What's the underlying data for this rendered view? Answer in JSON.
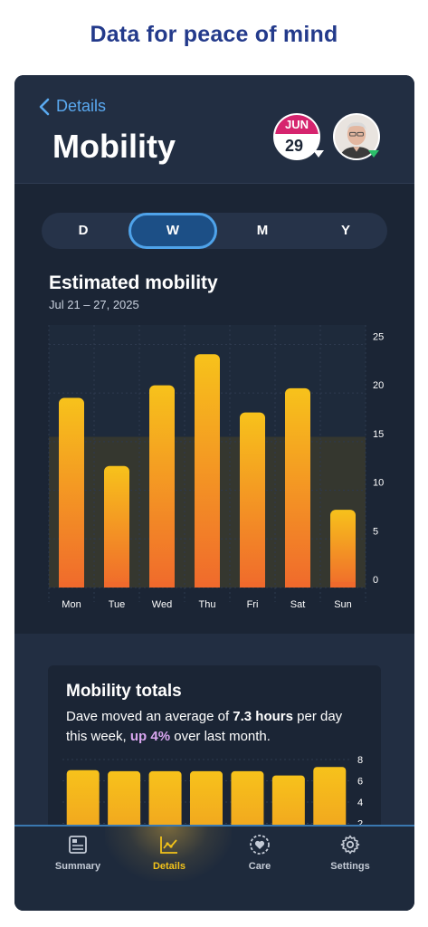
{
  "headline": "Data for peace of mind",
  "header": {
    "back_label": "Details",
    "title": "Mobility",
    "calendar": {
      "month": "JUN",
      "day": "29"
    }
  },
  "segments": [
    {
      "label": "D",
      "active": false
    },
    {
      "label": "W",
      "active": true
    },
    {
      "label": "M",
      "active": false
    },
    {
      "label": "Y",
      "active": false
    }
  ],
  "estimated": {
    "title": "Estimated mobility",
    "date_range": "Jul 21 – 27, 2025"
  },
  "chart_data": [
    {
      "type": "bar",
      "title": "Estimated mobility",
      "categories": [
        "Mon",
        "Tue",
        "Wed",
        "Thu",
        "Fri",
        "Sat",
        "Sun"
      ],
      "values": [
        19.5,
        12.5,
        20.8,
        24,
        18,
        20.5,
        8
      ],
      "yticks": [
        0,
        5,
        10,
        15,
        20,
        25
      ],
      "ylim": [
        0,
        27
      ],
      "target_band": [
        0,
        15.5
      ],
      "grid": true,
      "colors": {
        "bar_top": "#f7c21b",
        "bar_bottom": "#f06a2c",
        "band": "#3a3a2e"
      }
    },
    {
      "type": "bar",
      "title": "Mobility totals",
      "values": [
        7,
        6.9,
        6.9,
        6.9,
        6.9,
        6.5,
        7.3
      ],
      "yticks": [
        2,
        4,
        6,
        8
      ],
      "ylim": [
        0,
        8
      ],
      "colors": {
        "bar_top": "#f7c21b",
        "bar_bottom": "#f0a020"
      }
    }
  ],
  "totals": {
    "title": "Mobility totals",
    "text_before": "Dave moved an average of ",
    "hours": "7.3 hours",
    "text_mid": " per day this week, ",
    "up": "up 4%",
    "text_after": " over last month."
  },
  "tabs": [
    {
      "label": "Summary",
      "icon": "summary-icon",
      "active": false
    },
    {
      "label": "Details",
      "icon": "chart-icon",
      "active": true
    },
    {
      "label": "Care",
      "icon": "heart-icon",
      "active": false
    },
    {
      "label": "Settings",
      "icon": "gear-icon",
      "active": false
    }
  ]
}
